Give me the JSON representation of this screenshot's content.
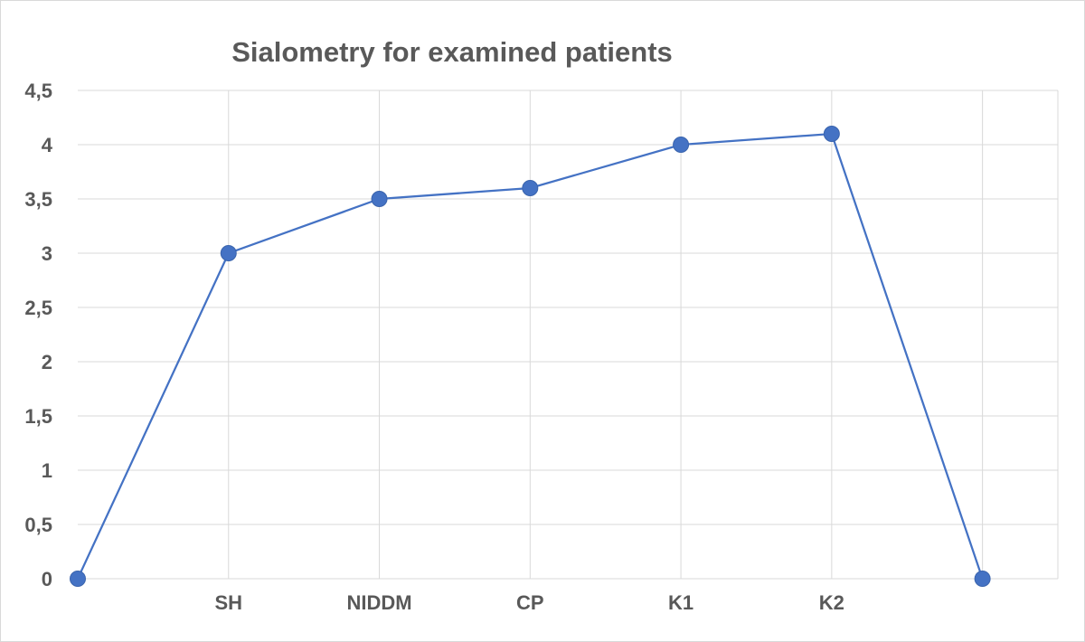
{
  "chart_data": {
    "type": "line",
    "title": "Sialometry for examined patients",
    "xlabel": "",
    "ylabel": "",
    "categories": [
      "",
      "SH",
      "NIDDM",
      "CP",
      "K1",
      "K2",
      ""
    ],
    "series": [
      {
        "values": [
          0,
          3,
          3.5,
          3.6,
          4,
          4.1,
          0
        ],
        "color": "#4472c4"
      }
    ],
    "ylim": [
      0,
      4.5
    ],
    "y_ticks": [
      0,
      0.5,
      1,
      1.5,
      2,
      2.5,
      3,
      3.5,
      4,
      4.5
    ],
    "y_tick_labels": [
      "0",
      "0,5",
      "1",
      "1,5",
      "2",
      "2,5",
      "3",
      "3,5",
      "4",
      "4,5"
    ],
    "grid": true,
    "legend": "none",
    "marker": "circle"
  }
}
